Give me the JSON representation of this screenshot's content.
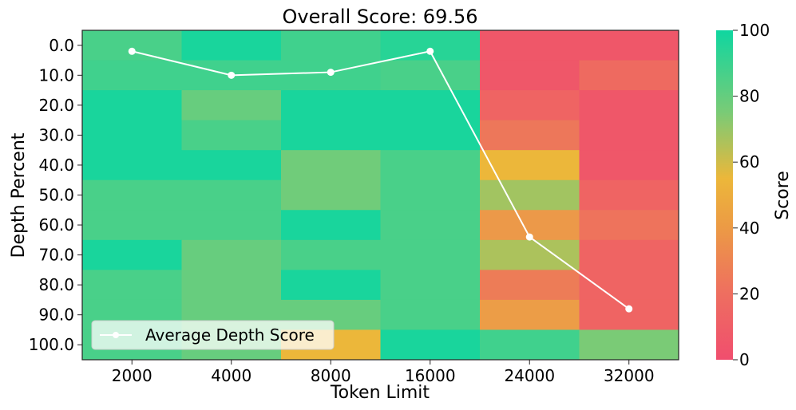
{
  "chart_data": {
    "type": "heatmap",
    "title": "Overall Score: 69.56",
    "xlabel": "Token Limit",
    "ylabel": "Depth Percent",
    "x_categories": [
      "2000",
      "4000",
      "8000",
      "16000",
      "24000",
      "32000"
    ],
    "y_categories": [
      "0.0",
      "10.0",
      "20.0",
      "30.0",
      "40.0",
      "50.0",
      "60.0",
      "70.0",
      "80.0",
      "90.0",
      "100.0"
    ],
    "values": [
      [
        88,
        98,
        90,
        95,
        5,
        5
      ],
      [
        90,
        90,
        90,
        88,
        5,
        15
      ],
      [
        98,
        82,
        98,
        98,
        12,
        5
      ],
      [
        98,
        88,
        98,
        98,
        22,
        5
      ],
      [
        98,
        98,
        80,
        88,
        55,
        5
      ],
      [
        88,
        88,
        80,
        88,
        70,
        12
      ],
      [
        88,
        88,
        98,
        88,
        40,
        20
      ],
      [
        98,
        82,
        88,
        88,
        68,
        12
      ],
      [
        88,
        82,
        98,
        88,
        25,
        12
      ],
      [
        88,
        82,
        82,
        88,
        42,
        12
      ],
      [
        88,
        82,
        55,
        98,
        90,
        78
      ]
    ],
    "series": [
      {
        "name": "Average Depth Score",
        "x": [
          "2000",
          "4000",
          "8000",
          "16000",
          "24000",
          "32000"
        ],
        "values": [
          0.2,
          1.0,
          0.9,
          0.2,
          6.4,
          8.8
        ]
      }
    ],
    "colorbar": {
      "label": "Score",
      "range": [
        0,
        100
      ],
      "ticks": [
        "0",
        "20",
        "40",
        "60",
        "80",
        "100"
      ],
      "colors": [
        "#f04e6e",
        "#ec8f4e",
        "#ecb73a",
        "#7acb76",
        "#0fd6a0"
      ]
    },
    "legend_position": "lower-left",
    "grid": false
  }
}
